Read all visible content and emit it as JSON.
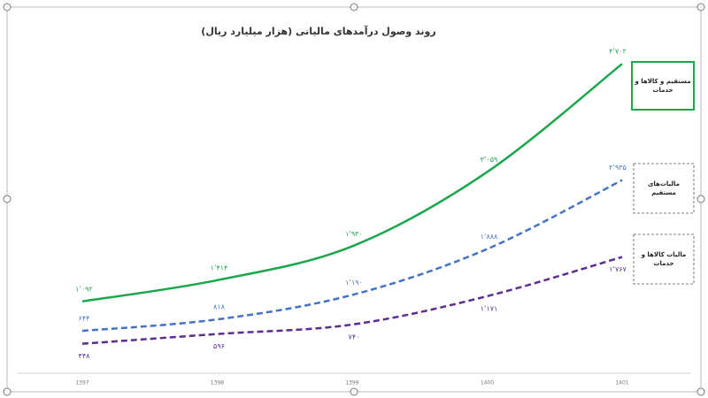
{
  "chart_data": {
    "type": "line",
    "title": "روند وصول درآمدهای مالیاتی (هزار میلیارد ریال)",
    "categories": [
      "1397",
      "1398",
      "1399",
      "1400",
      "1401"
    ],
    "ylim": [
      0,
      5000
    ],
    "series": [
      {
        "name": "مستقیم و کالاها و خدمات",
        "color": "#1aa64a",
        "dash": false,
        "values": [
          1092,
          1414,
          1930,
          3059,
          4702
        ],
        "value_labels": [
          "۱٬۰۹۲",
          "۱٬۴۱۴",
          "۱٬۹۳۰",
          "۳٬۰۵۹",
          "۴٬۷۰۲"
        ]
      },
      {
        "name": "مالیات‌های مستقیم",
        "color": "#4472c4",
        "dash": true,
        "values": [
          644,
          818,
          1190,
          1888,
          2935
        ],
        "value_labels": [
          "۶۴۴",
          "۸۱۸",
          "۱٬۱۹۰",
          "۱٬۸۸۸",
          "۲٬۹۳۵"
        ]
      },
      {
        "name": "مالیات کالاها و خدمات",
        "color": "#5b2d8e",
        "dash": true,
        "values": [
          448,
          596,
          740,
          1171,
          1767
        ],
        "value_labels": [
          "۴۴۸",
          "۵۹۶",
          "۷۴۰",
          "۱٬۱۷۱",
          "۱٬۷۶۷"
        ]
      }
    ]
  }
}
